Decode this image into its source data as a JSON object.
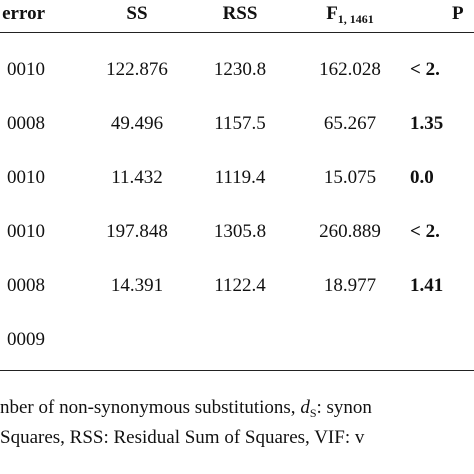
{
  "table": {
    "header": [
      {
        "text": "error"
      },
      {
        "text": "SS"
      },
      {
        "text": "RSS"
      },
      {
        "text": "F",
        "sub": "1, 1461"
      },
      {
        "text": "P"
      }
    ],
    "rows": [
      [
        "0010",
        "122.876",
        "1230.8",
        "162.028",
        "< 2."
      ],
      [
        "0008",
        "49.496",
        "1157.5",
        "65.267",
        "1.35"
      ],
      [
        "0010",
        "11.432",
        "1119.4",
        "15.075",
        "0.0"
      ],
      [
        "0010",
        "197.848",
        "1305.8",
        "260.889",
        "< 2."
      ],
      [
        "0008",
        "14.391",
        "1122.4",
        "18.977",
        "1.41"
      ],
      [
        "0009"
      ]
    ]
  },
  "footnote": {
    "line1": {
      "pre": "nber of non-synonymous substitutions, ",
      "symbol": "d",
      "sub": "S",
      "post": ": synon"
    },
    "line2": "Squares, RSS: Residual Sum of Squares, VIF: v"
  }
}
